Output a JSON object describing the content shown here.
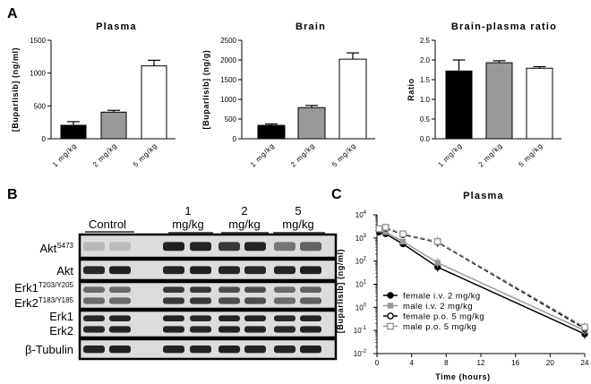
{
  "panels": {
    "a": "A",
    "b": "B",
    "c": "C"
  },
  "chart_data": [
    {
      "type": "bar",
      "title": "Plasma",
      "ylabel": "[Buparlisib] (ng/ml)",
      "categories": [
        "1 mg/kg",
        "2 mg/kg",
        "5 mg/kg"
      ],
      "values": [
        205,
        405,
        1110
      ],
      "errors": [
        55,
        28,
        85
      ],
      "colors": [
        "#000000",
        "#999999",
        "#ffffff"
      ],
      "ylim": [
        0,
        1500
      ],
      "yticks": [
        "0",
        "500",
        "1000",
        "1500"
      ],
      "ytick_values": [
        0,
        500,
        1000,
        1500
      ]
    },
    {
      "type": "bar",
      "title": "Brain",
      "ylabel": "[Buparlisib] (ng/g)",
      "categories": [
        "1 mg/kg",
        "2 mg/kg",
        "5 mg/kg"
      ],
      "values": [
        340,
        790,
        2020
      ],
      "errors": [
        35,
        55,
        160
      ],
      "colors": [
        "#000000",
        "#999999",
        "#ffffff"
      ],
      "ylim": [
        0,
        2500
      ],
      "yticks": [
        "0",
        "500",
        "1000",
        "1500",
        "2000",
        "2500"
      ],
      "ytick_values": [
        0,
        500,
        1000,
        1500,
        2000,
        2500
      ]
    },
    {
      "type": "bar",
      "title": "Brain-plasma ratio",
      "ylabel": "Ratio",
      "categories": [
        "1 mg/kg",
        "2 mg/kg",
        "5 mg/kg"
      ],
      "values": [
        1.72,
        1.93,
        1.79
      ],
      "errors": [
        0.28,
        0.05,
        0.04
      ],
      "colors": [
        "#000000",
        "#999999",
        "#ffffff"
      ],
      "ylim": [
        0,
        2.5
      ],
      "yticks": [
        "0.0",
        "0.5",
        "1.0",
        "1.5",
        "2.0",
        "2.5"
      ],
      "ytick_values": [
        0,
        0.5,
        1.0,
        1.5,
        2.0,
        2.5
      ]
    },
    {
      "type": "line",
      "title": "Plasma",
      "xlabel": "Time (hours)",
      "ylabel": "[Buparlisib] (ng/ml)",
      "yscale": "log",
      "xlim": [
        0,
        24
      ],
      "xticks": [
        0,
        4,
        8,
        12,
        16,
        20,
        24
      ],
      "ylim": [
        0.01,
        10000
      ],
      "yticks": [
        {
          "base": "10",
          "exp": "-2",
          "value": 0.01
        },
        {
          "base": "10",
          "exp": "-1",
          "value": 0.1
        },
        {
          "base": "10",
          "exp": "0",
          "value": 1
        },
        {
          "base": "10",
          "exp": "1",
          "value": 10
        },
        {
          "base": "10",
          "exp": "2",
          "value": 100
        },
        {
          "base": "10",
          "exp": "3",
          "value": 1000
        },
        {
          "base": "10",
          "exp": "4",
          "value": 10000
        }
      ],
      "legend_position": "bottom-left",
      "series": [
        {
          "name": "female i.v. 2 mg/kg",
          "x": [
            0.25,
            1,
            3,
            7,
            24
          ],
          "y": [
            1800,
            1500,
            550,
            55,
            0.07
          ],
          "color": "#000000",
          "dash": false,
          "marker": "filled-circle"
        },
        {
          "name": "male i.v. 2 mg/kg",
          "x": [
            0.25,
            1,
            3,
            7,
            24
          ],
          "y": [
            2300,
            1800,
            700,
            85,
            0.1
          ],
          "color": "#999999",
          "dash": false,
          "marker": "filled-square"
        },
        {
          "name": "female p.o. 5 mg/kg",
          "x": [
            0.25,
            1,
            3,
            7,
            24
          ],
          "y": [
            2400,
            2700,
            1400,
            650,
            0.12
          ],
          "color": "#000000",
          "dash": true,
          "marker": "open-circle"
        },
        {
          "name": "male p.o. 5 mg/kg",
          "x": [
            0.25,
            1,
            3,
            7,
            24
          ],
          "y": [
            2500,
            2900,
            1500,
            700,
            0.14
          ],
          "color": "#999999",
          "dash": true,
          "marker": "open-square"
        }
      ]
    }
  ],
  "blot": {
    "group_labels": [
      {
        "lines": [
          "Control"
        ],
        "underline": true
      },
      {
        "lines": [
          "1",
          "mg/kg"
        ],
        "underline": true
      },
      {
        "lines": [
          "2",
          "mg/kg"
        ],
        "underline": true
      },
      {
        "lines": [
          "5",
          "mg/kg"
        ],
        "underline": true
      }
    ],
    "rows": [
      {
        "labels": [
          {
            "main": "Akt",
            "sup": "S473"
          }
        ]
      },
      {
        "labels": [
          {
            "main": "Akt",
            "sup": ""
          }
        ]
      },
      {
        "labels": [
          {
            "main": "Erk1",
            "sup": "T203/Y205"
          },
          {
            "main": "Erk2",
            "sup": "T183/Y185"
          }
        ]
      },
      {
        "labels": [
          {
            "main": "Erk1",
            "sup": ""
          },
          {
            "main": "Erk2",
            "sup": ""
          }
        ]
      },
      {
        "labels": [
          {
            "main": "β-Tubulin",
            "sup": ""
          }
        ]
      }
    ]
  }
}
